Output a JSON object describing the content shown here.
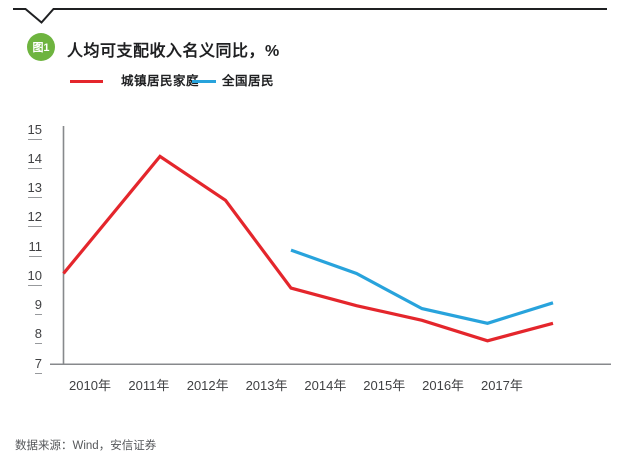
{
  "figure": {
    "badge": "图1",
    "title": "人均可支配收入名义同比，%"
  },
  "legend": {
    "items": [
      {
        "label": "城镇居民家庭",
        "color": "#e4262c"
      },
      {
        "label": "全国居民",
        "color": "#28a3dc"
      }
    ]
  },
  "chart_data": {
    "type": "line",
    "title": "人均可支配收入名义同比，%",
    "categories": [
      "2010年",
      "2011年",
      "2012年",
      "2013年",
      "2014年",
      "2015年",
      "2016年",
      "2017年"
    ],
    "series": [
      {
        "name": "城镇居民家庭",
        "color": "#e4262c",
        "values": [
          10.1,
          14.1,
          12.6,
          9.6,
          9.0,
          8.5,
          7.8,
          8.4
        ]
      },
      {
        "name": "全国居民",
        "color": "#28a3dc",
        "values": [
          null,
          null,
          null,
          10.9,
          10.1,
          8.9,
          8.4,
          9.1
        ]
      }
    ],
    "ylabel": "",
    "xlabel": "",
    "ylim": [
      7,
      15
    ],
    "yticks": [
      15,
      14,
      13,
      12,
      11,
      10,
      9,
      8,
      7
    ],
    "grid": false,
    "legend_position": "top-left"
  },
  "source": "数据来源：Wind，安信证券",
  "colors": {
    "red_series": "#e4262c",
    "blue_series": "#28a3dc",
    "badge_green": "#6eb43f",
    "axis_gray": "#87898c",
    "top_rule": "#1f2022",
    "tick_text": "#404143",
    "source_text": "#55575a"
  }
}
